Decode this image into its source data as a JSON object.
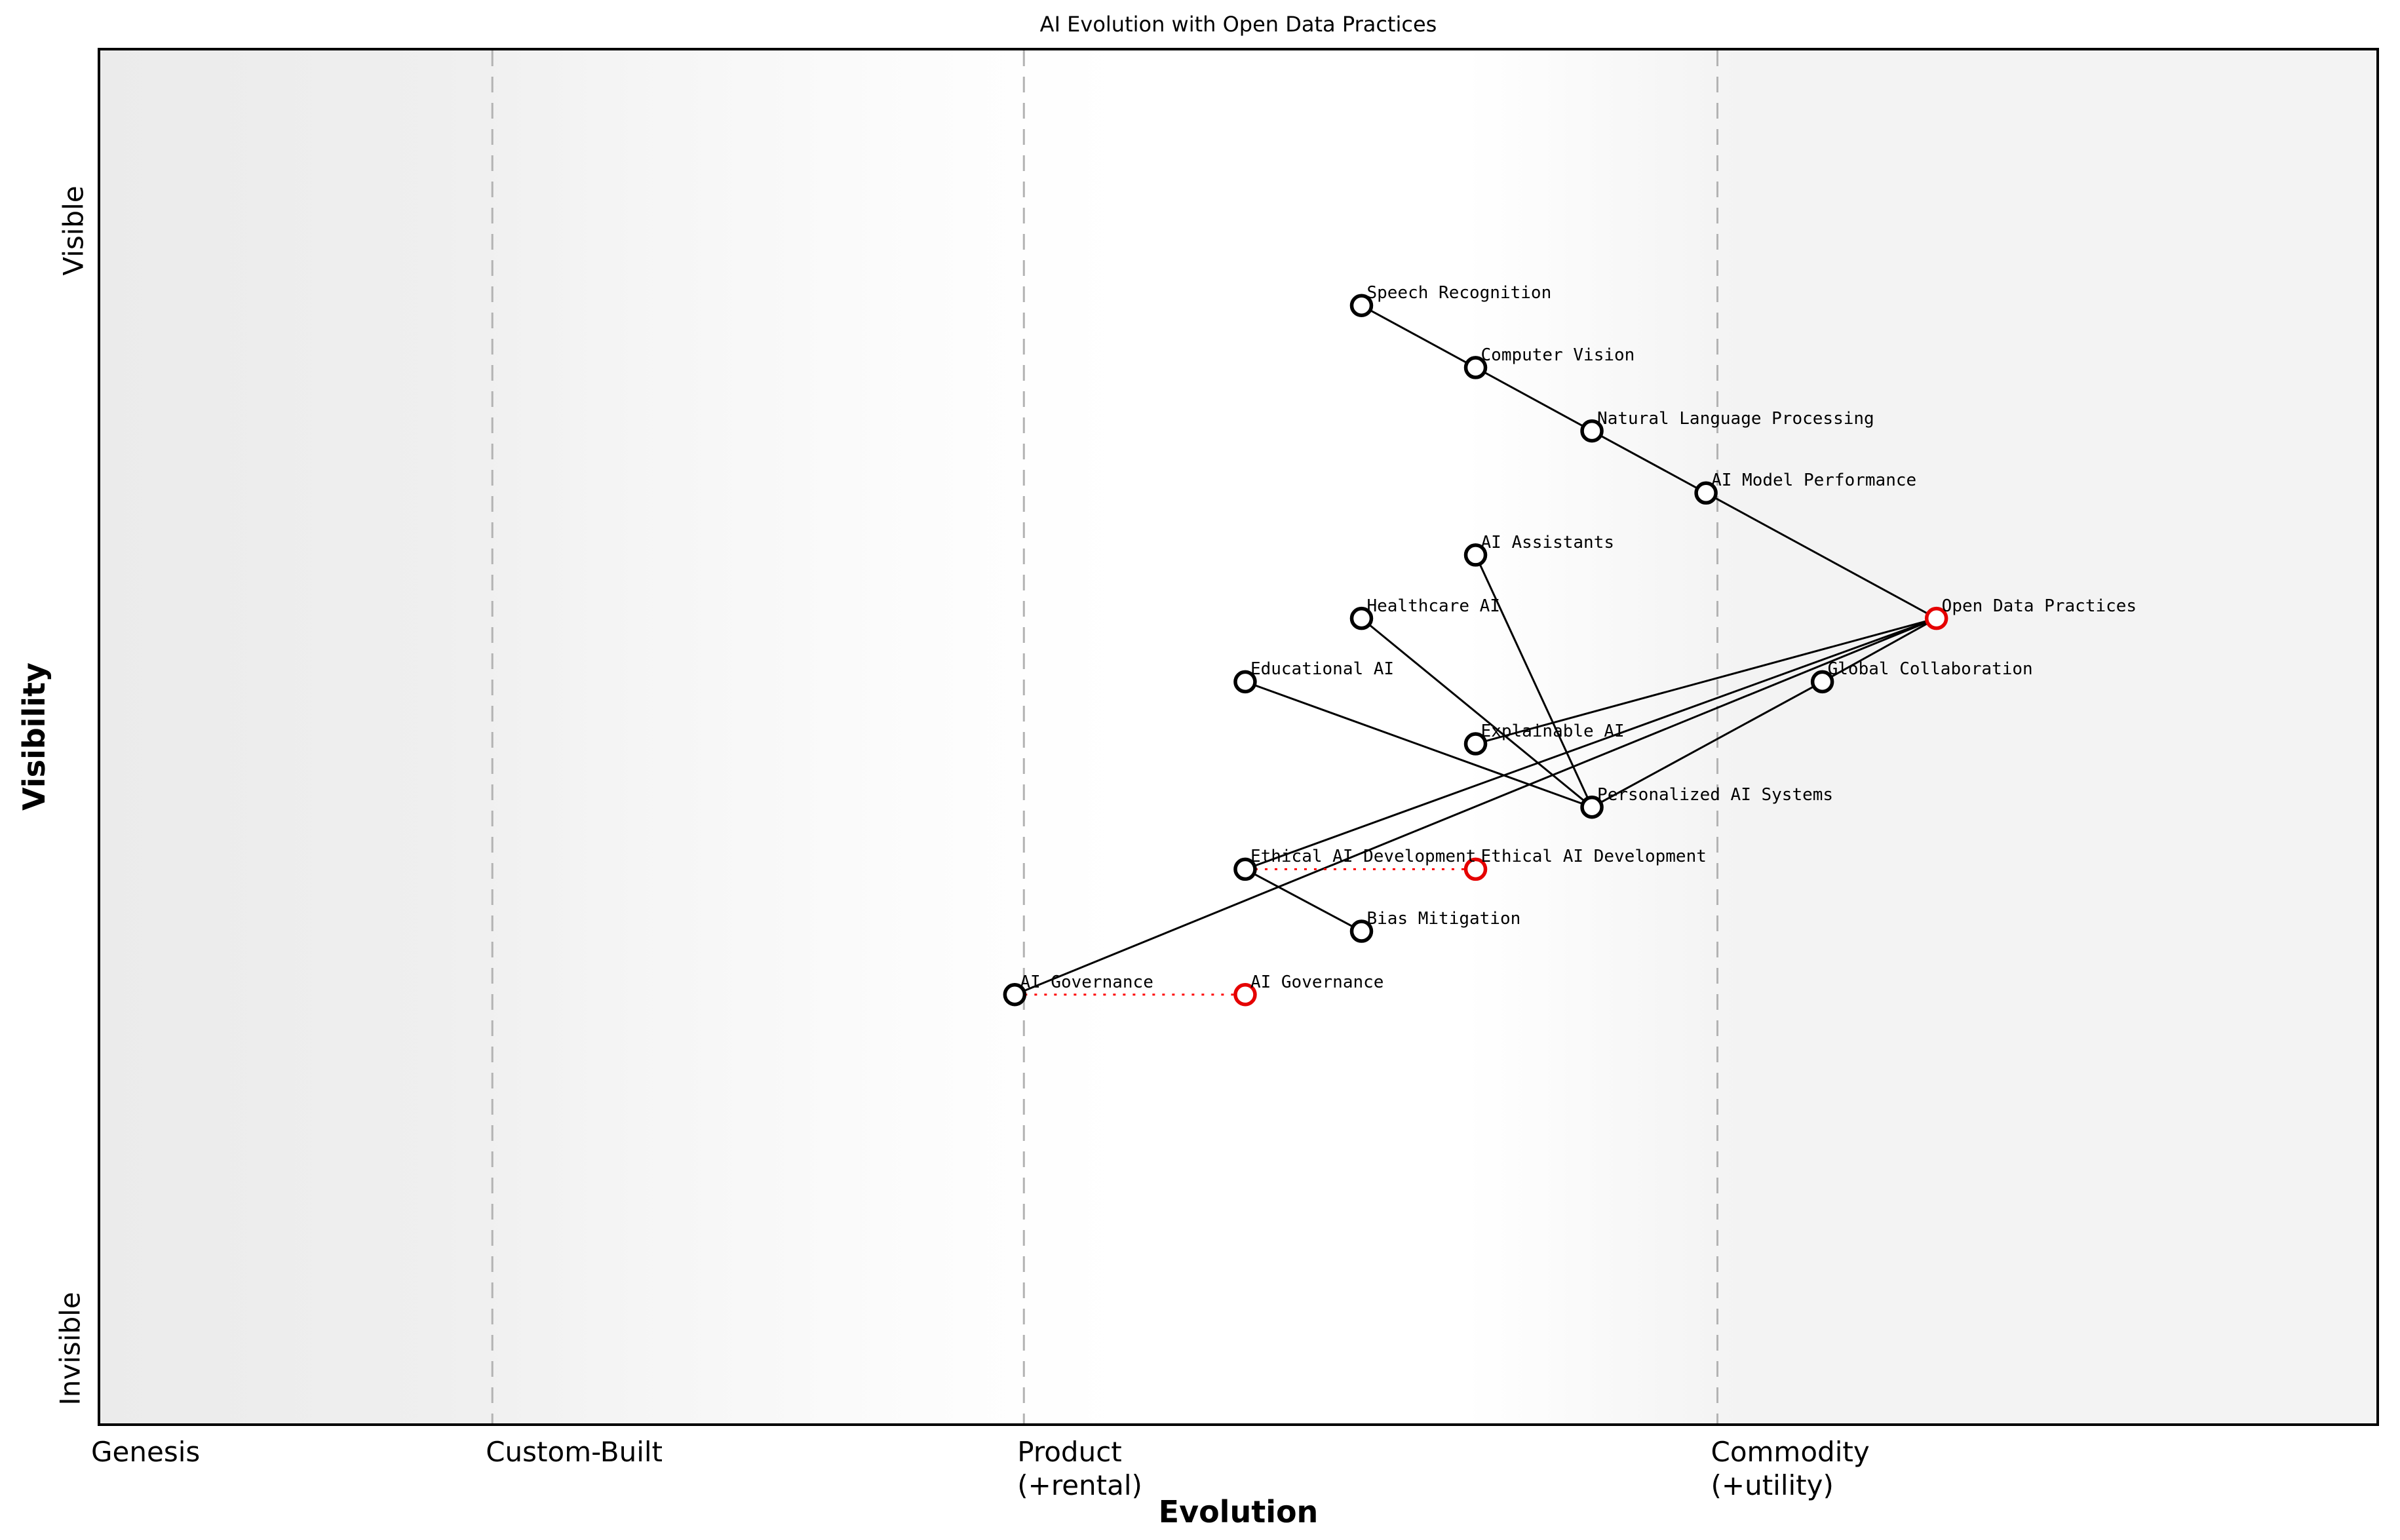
{
  "title": "AI Evolution with Open Data Practices",
  "x_axis": {
    "title": "Evolution",
    "stages": [
      {
        "label": "Genesis",
        "evolution": 0.0
      },
      {
        "label": "Custom-Built",
        "evolution": 0.173
      },
      {
        "label": "Product\n(+rental)",
        "evolution": 0.406
      },
      {
        "label": "Commodity\n(+utility)",
        "evolution": 0.71
      }
    ]
  },
  "y_axis": {
    "title": "Visibility",
    "top_label": "Visible",
    "bottom_label": "Invisible"
  },
  "colors": {
    "node_stroke": "#000000",
    "highlight_node_stroke": "#e50000",
    "edge": "#000000",
    "movement_line": "#ff0000",
    "boundary_line": "#b3b3b3",
    "node_fill": "#ffffff"
  },
  "chart_data": {
    "type": "scatter",
    "subtype": "wardley-map",
    "title": "AI Evolution with Open Data Practices",
    "xlabel": "Evolution",
    "ylabel": "Visibility",
    "xlim": [
      0,
      1
    ],
    "ylim": [
      0,
      1
    ],
    "grid": false,
    "evolution_boundaries": [
      0.173,
      0.406,
      0.71
    ],
    "nodes": [
      {
        "id": "speech_recognition",
        "label": "Speech Recognition",
        "evolution": 0.554,
        "visibility": 0.813,
        "highlight": false
      },
      {
        "id": "computer_vision",
        "label": "Computer Vision",
        "evolution": 0.604,
        "visibility": 0.768,
        "highlight": false
      },
      {
        "id": "natural_language_processing",
        "label": "Natural Language Processing",
        "evolution": 0.655,
        "visibility": 0.722,
        "highlight": false
      },
      {
        "id": "ai_model_performance",
        "label": "AI Model Performance",
        "evolution": 0.705,
        "visibility": 0.677,
        "highlight": false
      },
      {
        "id": "ai_assistants",
        "label": "AI Assistants",
        "evolution": 0.604,
        "visibility": 0.632,
        "highlight": false
      },
      {
        "id": "healthcare_ai",
        "label": "Healthcare AI",
        "evolution": 0.554,
        "visibility": 0.586,
        "highlight": false
      },
      {
        "id": "open_data_practices",
        "label": "Open Data Practices",
        "evolution": 0.806,
        "visibility": 0.586,
        "highlight": true
      },
      {
        "id": "educational_ai",
        "label": "Educational AI",
        "evolution": 0.503,
        "visibility": 0.54,
        "highlight": false
      },
      {
        "id": "global_collaboration",
        "label": "Global Collaboration",
        "evolution": 0.756,
        "visibility": 0.54,
        "highlight": false
      },
      {
        "id": "explainable_ai",
        "label": "Explainable AI",
        "evolution": 0.604,
        "visibility": 0.495,
        "highlight": false
      },
      {
        "id": "personalized_ai_systems",
        "label": "Personalized AI Systems",
        "evolution": 0.655,
        "visibility": 0.449,
        "highlight": false
      },
      {
        "id": "ethical_ai_development",
        "label": "Ethical AI Development",
        "evolution": 0.503,
        "visibility": 0.404,
        "highlight": false
      },
      {
        "id": "ethical_ai_development_evolved",
        "label": "Ethical AI Development",
        "evolution": 0.604,
        "visibility": 0.404,
        "highlight": true
      },
      {
        "id": "bias_mitigation",
        "label": "Bias Mitigation",
        "evolution": 0.554,
        "visibility": 0.359,
        "highlight": false
      },
      {
        "id": "ai_governance",
        "label": "AI Governance",
        "evolution": 0.402,
        "visibility": 0.313,
        "highlight": false
      },
      {
        "id": "ai_governance_evolved",
        "label": "AI Governance",
        "evolution": 0.503,
        "visibility": 0.313,
        "highlight": true
      }
    ],
    "edges": [
      [
        "speech_recognition",
        "computer_vision"
      ],
      [
        "computer_vision",
        "natural_language_processing"
      ],
      [
        "natural_language_processing",
        "ai_model_performance"
      ],
      [
        "ai_model_performance",
        "open_data_practices"
      ],
      [
        "open_data_practices",
        "global_collaboration"
      ],
      [
        "global_collaboration",
        "personalized_ai_systems"
      ],
      [
        "open_data_practices",
        "explainable_ai"
      ],
      [
        "open_data_practices",
        "ethical_ai_development"
      ],
      [
        "open_data_practices",
        "ai_governance"
      ],
      [
        "ai_assistants",
        "personalized_ai_systems"
      ],
      [
        "healthcare_ai",
        "personalized_ai_systems"
      ],
      [
        "educational_ai",
        "personalized_ai_systems"
      ],
      [
        "ethical_ai_development",
        "bias_mitigation"
      ]
    ],
    "movements": [
      [
        "ethical_ai_development",
        "ethical_ai_development_evolved"
      ],
      [
        "ai_governance",
        "ai_governance_evolved"
      ]
    ],
    "legend": null
  }
}
